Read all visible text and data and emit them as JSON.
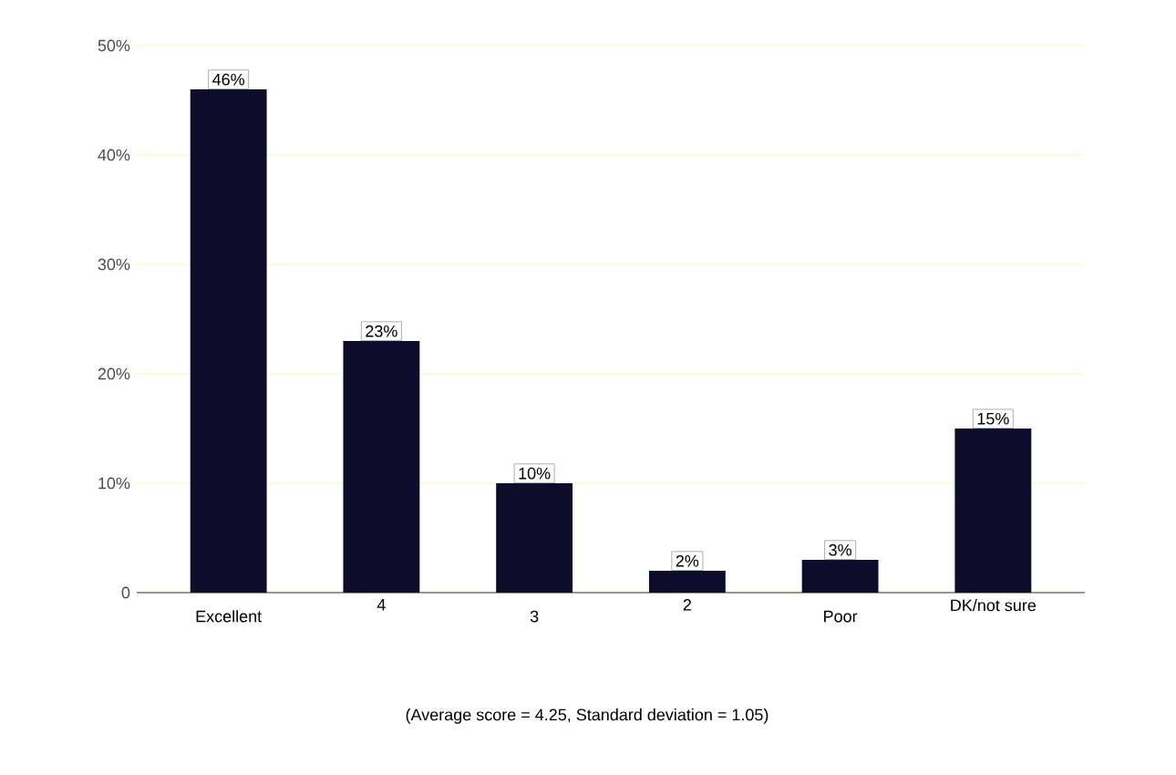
{
  "chart_data": {
    "type": "bar",
    "categories": [
      "Excellent",
      "4",
      "3",
      "2",
      "Poor",
      "DK/not sure"
    ],
    "values": [
      46,
      23,
      10,
      2,
      3,
      15
    ],
    "value_labels": [
      "46%",
      "23%",
      "10%",
      "2%",
      "3%",
      "15%"
    ],
    "color": "#0d0d2b",
    "ylim": [
      0,
      50
    ],
    "yticks": [
      0,
      {
        "value": 10,
        "label": "10%"
      },
      {
        "value": 20,
        "label": "20%"
      },
      {
        "value": 30,
        "label": "30%"
      },
      {
        "value": 40,
        "label": "40%"
      },
      {
        "value": 50,
        "label": "50%"
      }
    ],
    "grid": "y",
    "annotations": [
      "(Average score = 4.25, Standard deviation = 1.05)"
    ]
  }
}
